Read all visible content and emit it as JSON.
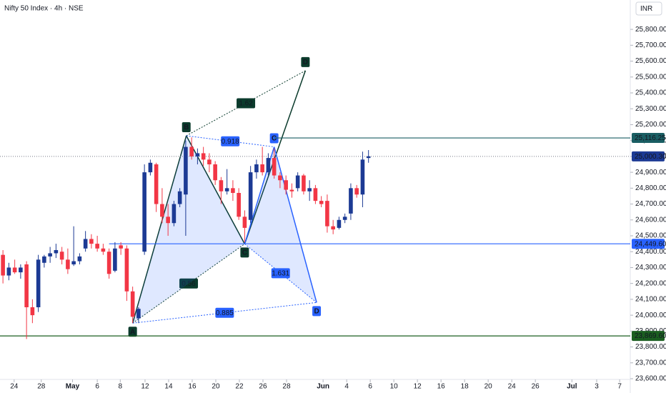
{
  "chart_data": {
    "type": "candlestick",
    "title": "Nifty 50 Index · 4h · NSE",
    "currency": "INR",
    "up_color": "#1c3a94",
    "down_color": "#f23645",
    "xlim": [
      -0.5,
      106.4
    ],
    "ylim": [
      23600,
      25985
    ],
    "xticks": [
      {
        "value": 1.9,
        "label": "24"
      },
      {
        "value": 6.5,
        "label": "28"
      },
      {
        "value": 11.8,
        "label": "May"
      },
      {
        "value": 16,
        "label": "6"
      },
      {
        "value": 19.9,
        "label": "8"
      },
      {
        "value": 24.1,
        "label": "12"
      },
      {
        "value": 28.1,
        "label": "14"
      },
      {
        "value": 32.1,
        "label": "16"
      },
      {
        "value": 36.1,
        "label": "20"
      },
      {
        "value": 40.1,
        "label": "22"
      },
      {
        "value": 44.1,
        "label": "26"
      },
      {
        "value": 48.1,
        "label": "28"
      },
      {
        "value": 54.3,
        "label": "Jun"
      },
      {
        "value": 58.3,
        "label": "4"
      },
      {
        "value": 62.3,
        "label": "6"
      },
      {
        "value": 66.3,
        "label": "10"
      },
      {
        "value": 70.3,
        "label": "12"
      },
      {
        "value": 74.3,
        "label": "16"
      },
      {
        "value": 78.3,
        "label": "18"
      },
      {
        "value": 82.3,
        "label": "20"
      },
      {
        "value": 86.3,
        "label": "24"
      },
      {
        "value": 90.3,
        "label": "26"
      },
      {
        "value": 96.5,
        "label": "Jul"
      },
      {
        "value": 100.7,
        "label": "3"
      },
      {
        "value": 104.6,
        "label": "7"
      }
    ],
    "yticks": [
      {
        "value": 23600,
        "label": "23,600.00"
      },
      {
        "value": 23700,
        "label": "23,700.00"
      },
      {
        "value": 23800,
        "label": "23,800.00"
      },
      {
        "value": 23900,
        "label": "23,900.00"
      },
      {
        "value": 24000,
        "label": "24,000.00"
      },
      {
        "value": 24100,
        "label": "24,100.00"
      },
      {
        "value": 24200,
        "label": "24,200.00"
      },
      {
        "value": 24300,
        "label": "24,300.00"
      },
      {
        "value": 24400,
        "label": "24,400.00"
      },
      {
        "value": 24500,
        "label": "24,500.00"
      },
      {
        "value": 24600,
        "label": "24,600.00"
      },
      {
        "value": 24700,
        "label": "24,700.00"
      },
      {
        "value": 24800,
        "label": "24,800.00"
      },
      {
        "value": 24900,
        "label": "24,900.00"
      },
      {
        "value": 25000,
        "label": "25,000.00"
      },
      {
        "value": 25100,
        "label": "25,100.00"
      },
      {
        "value": 25200,
        "label": "25,200.00"
      },
      {
        "value": 25300,
        "label": "25,300.00"
      },
      {
        "value": 25400,
        "label": "25,400.00"
      },
      {
        "value": 25500,
        "label": "25,500.00"
      },
      {
        "value": 25600,
        "label": "25,600.00"
      },
      {
        "value": 25700,
        "label": "25,700.00"
      },
      {
        "value": 25800,
        "label": "25,800.00"
      }
    ],
    "open": [
      24380,
      24250,
      24300,
      24270,
      24320,
      24050,
      24050,
      24330,
      24370,
      24390,
      24400,
      24350,
      24320,
      24340,
      24420,
      24480,
      24450,
      24420,
      24400,
      24280,
      24440,
      24420,
      24150,
      23980,
      24400,
      24900,
      24950,
      24700,
      24620,
      24580,
      24700,
      24760,
      25060,
      25000,
      25020,
      24980,
      24950,
      24850,
      24780,
      24800,
      24770,
      24620,
      24600,
      24900,
      24950,
      24900,
      24990,
      24880,
      24850,
      24790,
      24800,
      24880,
      24780,
      24800,
      24720,
      24720,
      24560,
      24550,
      24600,
      24640,
      24800,
      24760,
      24990
    ],
    "high": [
      24410,
      24330,
      24350,
      24320,
      24340,
      24100,
      24380,
      24380,
      24430,
      24450,
      24430,
      24420,
      24560,
      24390,
      24530,
      24510,
      24500,
      24450,
      24420,
      24460,
      24460,
      24440,
      24180,
      24050,
      24950,
      24980,
      24960,
      24800,
      24700,
      24720,
      24800,
      25100,
      25120,
      25050,
      25060,
      25020,
      24970,
      24870,
      24920,
      24850,
      24800,
      24660,
      24940,
      24980,
      25060,
      25020,
      25050,
      24900,
      24880,
      24830,
      24900,
      24890,
      24850,
      24820,
      24750,
      24760,
      24600,
      24620,
      24640,
      24830,
      24820,
      25030,
      25040
    ],
    "low": [
      24200,
      24220,
      24260,
      24230,
      23850,
      23950,
      24020,
      24300,
      24330,
      24360,
      24320,
      24260,
      24310,
      24320,
      24400,
      24420,
      24400,
      24380,
      24230,
      24270,
      24380,
      24090,
      23950,
      23950,
      24380,
      24880,
      24650,
      24580,
      24500,
      24560,
      24680,
      24500,
      24980,
      24950,
      24940,
      24900,
      24820,
      24700,
      24760,
      24720,
      24600,
      24460,
      24580,
      24860,
      24880,
      24880,
      24860,
      24800,
      24760,
      24740,
      24780,
      24760,
      24720,
      24700,
      24680,
      24520,
      24510,
      24540,
      24580,
      24600,
      24740,
      24680,
      24960
    ],
    "close": [
      24250,
      24300,
      24270,
      24300,
      24050,
      24000,
      24350,
      24370,
      24390,
      24410,
      24350,
      24290,
      24340,
      24370,
      24480,
      24450,
      24420,
      24400,
      24260,
      24420,
      24420,
      24150,
      23990,
      24040,
      24900,
      24960,
      24700,
      24620,
      24580,
      24700,
      24780,
      25060,
      25000,
      25020,
      24980,
      24950,
      24850,
      24780,
      24800,
      24770,
      24620,
      24550,
      24900,
      24950,
      24900,
      24990,
      24880,
      24850,
      24790,
      24780,
      24880,
      24780,
      24800,
      24720,
      24700,
      24560,
      24540,
      24600,
      24620,
      24800,
      24760,
      24980,
      25000.3
    ],
    "levels": [
      {
        "value": 25116.25,
        "label": "25,116.25",
        "color": "#1a5e63",
        "from": 46
      },
      {
        "value": 25000.3,
        "label": "25,000.30",
        "color": "#1c3a94",
        "from": -0.5
      },
      {
        "value": 24449.6,
        "label": "24,449.60",
        "color": "#2962ff",
        "from": 18
      },
      {
        "value": 23869.6,
        "label": "23,869.60",
        "color": "#1b5e20",
        "from": -0.5
      }
    ],
    "patterns": [
      {
        "color": "#0b3b2c",
        "points": [
          {
            "x": 22,
            "y": 23950,
            "label": "A"
          },
          {
            "x": 31.1,
            "y": 25130,
            "label": "B"
          },
          {
            "x": 41,
            "y": 24449,
            "label": "C"
          },
          {
            "x": 51.3,
            "y": 25540,
            "label": "D"
          }
        ],
        "ratios": [
          0.56,
          1.62
        ]
      },
      {
        "color": "#2962ff",
        "points": [
          {
            "x": 22,
            "y": 23950
          },
          {
            "x": 31.1,
            "y": 25130
          },
          {
            "x": 41,
            "y": 24449
          },
          {
            "x": 46,
            "y": 25060,
            "label": "C"
          },
          {
            "x": 53.2,
            "y": 24080,
            "label": "D"
          }
        ],
        "ratios": [
          0.918,
          1.631,
          0.885
        ]
      }
    ]
  }
}
